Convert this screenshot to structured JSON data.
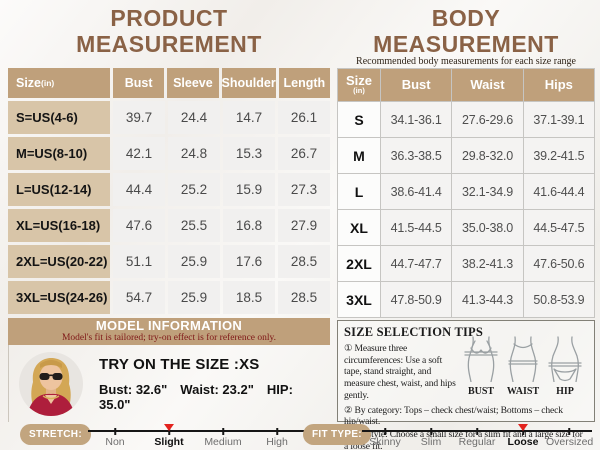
{
  "colors": {
    "title_brown": "#8a6246",
    "header_tan": "#bfa07b",
    "label_beige": "#d8c5a8",
    "pill_tan": "#c2a57f",
    "marker_red": "#e3231e",
    "banner_subtitle_maroon": "#7e1616"
  },
  "product": {
    "title": "PRODUCT MEASUREMENT",
    "table": {
      "headers": [
        "Size",
        "Bust",
        "Sleeve",
        "Shoulder",
        "Length"
      ],
      "unit": "(in)",
      "rows": [
        {
          "label": "S=US(4-6)",
          "values": [
            "39.7",
            "24.4",
            "14.7",
            "26.1"
          ]
        },
        {
          "label": "M=US(8-10)",
          "values": [
            "42.1",
            "24.8",
            "15.3",
            "26.7"
          ]
        },
        {
          "label": "L=US(12-14)",
          "values": [
            "44.4",
            "25.2",
            "15.9",
            "27.3"
          ]
        },
        {
          "label": "XL=US(16-18)",
          "values": [
            "47.6",
            "25.5",
            "16.8",
            "27.9"
          ]
        },
        {
          "label": "2XL=US(20-22)",
          "values": [
            "51.1",
            "25.9",
            "17.6",
            "28.5"
          ]
        },
        {
          "label": "3XL=US(24-26)",
          "values": [
            "54.7",
            "25.9",
            "18.5",
            "28.5"
          ]
        }
      ]
    },
    "model": {
      "banner_title": "MODEL INFORMATION",
      "banner_subtitle": "Model's fit is tailored; try-on effect is for reference only.",
      "try_on_size": "TRY ON THE SIZE :XS",
      "measurements": [
        "Bust: 32.6\"",
        "Waist: 23.2\"",
        "HIP: 35.0\""
      ]
    }
  },
  "body": {
    "title": "BODY MEASUREMENT",
    "subtitle": "Recommended body measurements for each size range",
    "table": {
      "headers": [
        "Size",
        "Bust",
        "Waist",
        "Hips"
      ],
      "unit": "(in)",
      "rows": [
        {
          "label": "S",
          "values": [
            "34.1-36.1",
            "27.6-29.6",
            "37.1-39.1"
          ]
        },
        {
          "label": "M",
          "values": [
            "36.3-38.5",
            "29.8-32.0",
            "39.2-41.5"
          ]
        },
        {
          "label": "L",
          "values": [
            "38.6-41.4",
            "32.1-34.9",
            "41.6-44.4"
          ]
        },
        {
          "label": "XL",
          "values": [
            "41.5-44.5",
            "35.0-38.0",
            "44.5-47.5"
          ]
        },
        {
          "label": "2XL",
          "values": [
            "44.7-47.7",
            "38.2-41.3",
            "47.6-50.6"
          ]
        },
        {
          "label": "3XL",
          "values": [
            "47.8-50.9",
            "41.3-44.3",
            "50.8-53.9"
          ]
        }
      ]
    },
    "tips": {
      "heading": "SIZE SELECTION TIPS",
      "bullets": [
        "①",
        "②",
        "③"
      ],
      "items": [
        "Measure three circumferences: Use a soft tape, stand straight, and measure chest, waist, and hips gently.",
        "By category: Tops – check chest/waist; Bottoms – check hip/waist.",
        "By style: Choose a small size for a slim fit and a large size for a loose fit."
      ],
      "figure_labels": [
        "BUST",
        "WAIST",
        "HIP"
      ]
    }
  },
  "stretch": {
    "label": "STRETCH:",
    "options": [
      "Non",
      "Slight",
      "Medium",
      "High"
    ],
    "selected": "Slight"
  },
  "fit_type": {
    "label": "FIT TYPE:",
    "options": [
      "Skinny",
      "Slim",
      "Regular",
      "Loose",
      "Oversized"
    ],
    "selected": "Loose"
  }
}
